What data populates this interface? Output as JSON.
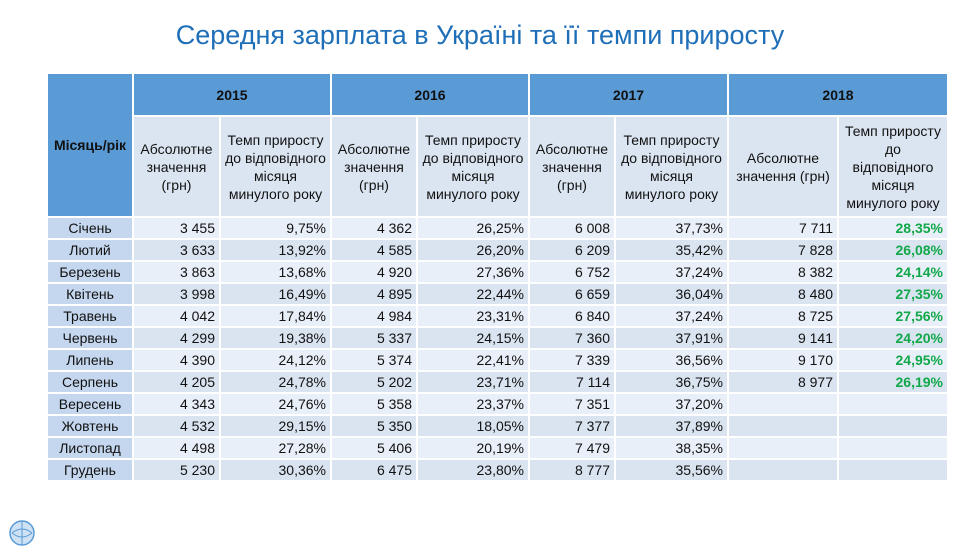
{
  "header": {
    "title": "Середня зарплата в Україні та її темпи приросту"
  },
  "table": {
    "corner": "Місяць/рік",
    "years": [
      "2015",
      "2016",
      "2017",
      "2018"
    ],
    "subheaders": [
      "Абсолютне значення (грн)",
      "Темп приросту до відповідного місяця минулого року",
      "Абсолютне значення (грн)",
      "Темп приросту до відповідного місяця минулого року",
      "Абсолютне значення (грн)",
      "Темп приросту до відповідного місяця минулого року",
      "Абсолютне значення (грн)",
      "Темп приросту до відповідного місяця минулого року"
    ],
    "rows": [
      {
        "month": "Січень",
        "cells": [
          "3 455",
          "9,75%",
          "4 362",
          "26,25%",
          "6 008",
          "37,73%",
          "7 711",
          "28,35%"
        ]
      },
      {
        "month": "Лютий",
        "cells": [
          "3 633",
          "13,92%",
          "4 585",
          "26,20%",
          "6 209",
          "35,42%",
          "7 828",
          "26,08%"
        ]
      },
      {
        "month": "Березень",
        "cells": [
          "3 863",
          "13,68%",
          "4 920",
          "27,36%",
          "6 752",
          "37,24%",
          "8 382",
          "24,14%"
        ]
      },
      {
        "month": "Квітень",
        "cells": [
          "3 998",
          "16,49%",
          "4 895",
          "22,44%",
          "6 659",
          "36,04%",
          "8 480",
          "27,35%"
        ]
      },
      {
        "month": "Травень",
        "cells": [
          "4 042",
          "17,84%",
          "4 984",
          "23,31%",
          "6 840",
          "37,24%",
          "8 725",
          "27,56%"
        ]
      },
      {
        "month": "Червень",
        "cells": [
          "4 299",
          "19,38%",
          "5 337",
          "24,15%",
          "7 360",
          "37,91%",
          "9 141",
          "24,20%"
        ]
      },
      {
        "month": "Липень",
        "cells": [
          "4 390",
          "24,12%",
          "5 374",
          "22,41%",
          "7 339",
          "36,56%",
          "9 170",
          "24,95%"
        ]
      },
      {
        "month": "Серпень",
        "cells": [
          "4 205",
          "24,78%",
          "5 202",
          "23,71%",
          "7 114",
          "36,75%",
          "8 977",
          "26,19%"
        ]
      },
      {
        "month": "Вересень",
        "cells": [
          "4 343",
          "24,76%",
          "5 358",
          "23,37%",
          "7 351",
          "37,20%"
        ]
      },
      {
        "month": "Жовтень",
        "cells": [
          "4 532",
          "29,15%",
          "5 350",
          "18,05%",
          "7 377",
          "37,89%"
        ]
      },
      {
        "month": "Листопад",
        "cells": [
          "4 498",
          "27,28%",
          "5 406",
          "20,19%",
          "7 479",
          "38,35%"
        ]
      },
      {
        "month": "Грудень",
        "cells": [
          "5 230",
          "30,36%",
          "6 475",
          "23,80%",
          "8 777",
          "35,56%"
        ]
      }
    ]
  }
}
